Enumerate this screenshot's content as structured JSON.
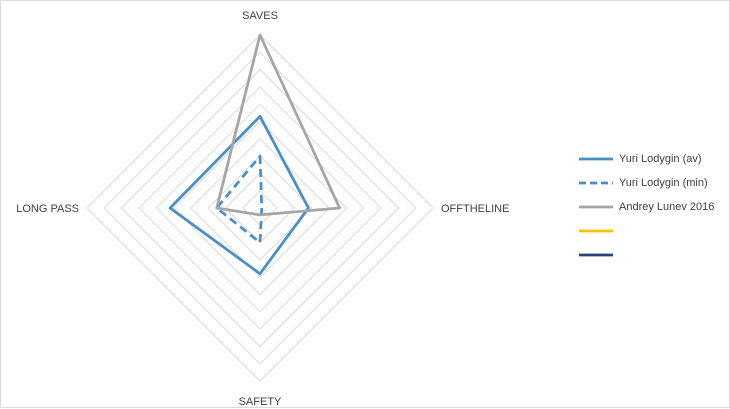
{
  "chart_data": {
    "type": "radar",
    "axes": [
      "SAVES",
      "OFFTHELINE",
      "SAFETY",
      "LONG PASS"
    ],
    "rmax": 10,
    "rings": 10,
    "grid": true,
    "legend_position": "right",
    "series": [
      {
        "name": "Yuri Lodygin (av)",
        "values": [
          5.3,
          2.8,
          3.8,
          5.2
        ],
        "color": "#4a8ec8",
        "dash": "solid"
      },
      {
        "name": "Yuri Lodygin (min)",
        "values": [
          3.0,
          0.1,
          2.0,
          2.5
        ],
        "color": "#4a8ec8",
        "dash": "dashed"
      },
      {
        "name": "Andrey Lunev 2016",
        "values": [
          10.0,
          4.6,
          0.4,
          2.5
        ],
        "color": "#a5a5a5",
        "dash": "solid"
      },
      {
        "name": "",
        "values": [],
        "color": "#ffc000",
        "dash": "solid"
      },
      {
        "name": "",
        "values": [],
        "color": "#264478",
        "dash": "solid"
      }
    ]
  }
}
